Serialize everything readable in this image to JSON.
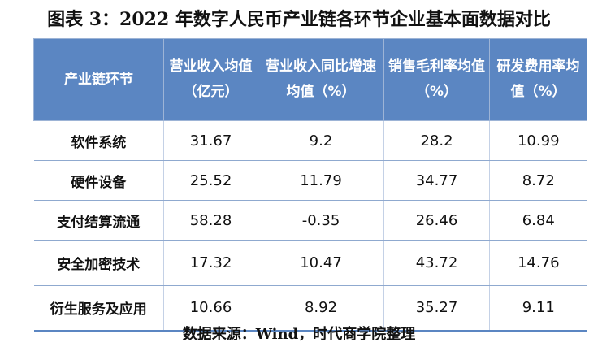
{
  "title": "图表 3：2022 年数字人民币产业链各环节企业基本面数据对比",
  "table": {
    "headers": [
      "产业链环节",
      "营业收入均值（亿元）",
      "营业收入同比增速均值（%）",
      "销售毛利率均值（%）",
      "研发费用率均值（%）"
    ],
    "rows": [
      [
        "软件系统",
        "31.67",
        "9.2",
        "28.2",
        "10.99"
      ],
      [
        "硬件设备",
        "25.52",
        "11.79",
        "34.77",
        "8.72"
      ],
      [
        "支付结算流通",
        "58.28",
        "-0.35",
        "26.46",
        "6.84"
      ],
      [
        "安全加密技术",
        "17.32",
        "10.47",
        "43.72",
        "14.76"
      ],
      [
        "衍生服务及应用",
        "10.66",
        "8.92",
        "35.27",
        "9.11"
      ]
    ]
  },
  "source": "数据来源：Wind，时代商学院整理",
  "colors": {
    "header_bg": "#5b86c2",
    "header_text": "#ffffff",
    "rule": "#8fa9cf"
  }
}
